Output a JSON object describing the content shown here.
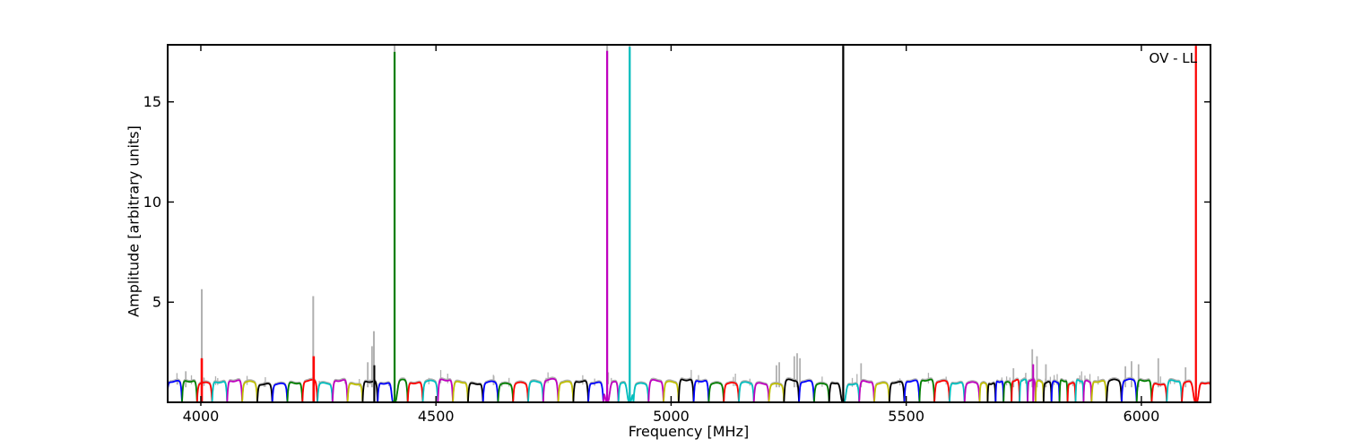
{
  "figure": {
    "background": "#ffffff"
  },
  "chart_data": {
    "type": "line",
    "title": "",
    "xlabel": "Frequency [MHz]",
    "ylabel": "Amplitude [arbitrary units]",
    "annotation": "OV - LL",
    "xlim": [
      3929.5,
      6147
    ],
    "ylim": [
      0,
      17.85
    ],
    "xticks": [
      4000,
      4500,
      5000,
      5500,
      6000
    ],
    "yticks": [
      5,
      10,
      15
    ],
    "grid": false,
    "legend": null,
    "colors": {
      "cycle": [
        "#0000ff",
        "#007f00",
        "#ff0000",
        "#00bfbf",
        "#bf00bf",
        "#bfbf00",
        "#000000"
      ],
      "gray": "#b0b0b0",
      "axes": "#000000",
      "background": "#ffffff"
    },
    "description": "Bandpass spectrum: repeating ~32 MHz spectral-window humps of amplitude ~1 in a 7-color cycle, with narrow RFI spikes; gray trace is unflagged data.",
    "spectral_windows": {
      "segments": [
        {
          "start_mhz": 3928,
          "width_mhz": 32,
          "count": 54
        },
        {
          "start_mhz": 5656,
          "width_mhz": 17,
          "count": 14
        },
        {
          "start_mhz": 5894,
          "width_mhz": 32,
          "count": 9
        }
      ],
      "baseline_amplitude": 1.05,
      "color_overrides": {
        "29": "#bf00bf",
        "30": "#00bfbf",
        "44": "#000000",
        "74": "#ff0000",
        "75": "#ff0000"
      }
    },
    "spikes": [
      {
        "freq": 4002,
        "amp": 5.65,
        "color": "#b0b0b0",
        "w": 2
      },
      {
        "freq": 4002,
        "amp": 2.2,
        "color": "#ff0000",
        "w": 2.6
      },
      {
        "freq": 4239,
        "amp": 5.3,
        "color": "#b0b0b0",
        "w": 2
      },
      {
        "freq": 4240,
        "amp": 2.3,
        "color": "#ff0000",
        "w": 2.6
      },
      {
        "freq": 4368,
        "amp": 3.55,
        "color": "#b0b0b0",
        "w": 2
      },
      {
        "freq": 4369,
        "amp": 1.85,
        "color": "#000000",
        "w": 2
      },
      {
        "freq": 4412,
        "amp": 18,
        "color": "#b0b0b0",
        "w": 2
      },
      {
        "freq": 4412,
        "amp": 17.5,
        "color": "#007f00",
        "w": 2.2
      },
      {
        "freq": 4864,
        "amp": 18,
        "color": "#b0b0b0",
        "w": 2
      },
      {
        "freq": 4864,
        "amp": 17.55,
        "color": "#bf00bf",
        "w": 2.2
      },
      {
        "freq": 4912,
        "amp": 18,
        "color": "#b0b0b0",
        "w": 2
      },
      {
        "freq": 4912,
        "amp": 17.75,
        "color": "#00bfbf",
        "w": 2.2
      },
      {
        "freq": 5366,
        "amp": 18,
        "color": "#b0b0b0",
        "w": 2
      },
      {
        "freq": 5366,
        "amp": 17.8,
        "color": "#000000",
        "w": 2.2
      },
      {
        "freq": 5770,
        "amp": 1.9,
        "color": "#bf00bf",
        "w": 2
      },
      {
        "freq": 6116,
        "amp": 18,
        "color": "#b0b0b0",
        "w": 2
      },
      {
        "freq": 6116,
        "amp": 17.8,
        "color": "#ff0000",
        "w": 2.2
      }
    ],
    "gray_bumps": [
      {
        "freq": 3968,
        "amp": 1.55
      },
      {
        "freq": 4355,
        "amp": 2.0
      },
      {
        "freq": 4364,
        "amp": 2.8
      },
      {
        "freq": 5224,
        "amp": 1.85
      },
      {
        "freq": 5230,
        "amp": 2.0
      },
      {
        "freq": 5262,
        "amp": 2.3
      },
      {
        "freq": 5268,
        "amp": 2.45
      },
      {
        "freq": 5274,
        "amp": 2.2
      },
      {
        "freq": 5404,
        "amp": 1.95
      },
      {
        "freq": 5728,
        "amp": 1.7
      },
      {
        "freq": 5768,
        "amp": 2.65
      },
      {
        "freq": 5778,
        "amp": 2.3
      },
      {
        "freq": 5797,
        "amp": 1.9
      },
      {
        "freq": 5966,
        "amp": 1.8
      },
      {
        "freq": 5979,
        "amp": 2.05
      },
      {
        "freq": 5994,
        "amp": 1.9
      },
      {
        "freq": 6036,
        "amp": 2.2
      },
      {
        "freq": 6094,
        "amp": 1.75
      }
    ]
  }
}
